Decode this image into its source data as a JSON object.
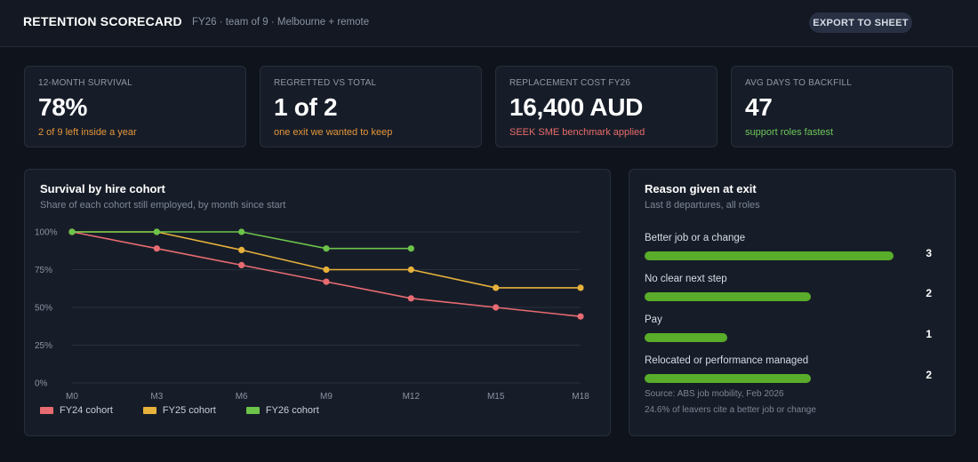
{
  "header": {
    "title": "RETENTION SCORECARD",
    "subtitle": "FY26 · team of 9 · Melbourne + remote",
    "export_label": "EXPORT TO SHEET"
  },
  "kpis": [
    {
      "label": "12-MONTH SURVIVAL",
      "value": "78%",
      "note": "2 of 9 left inside a year",
      "note_color": "#e3953a"
    },
    {
      "label": "REGRETTED VS TOTAL",
      "value": "1 of 2",
      "note": "one exit we wanted to keep",
      "note_color": "#e3953a"
    },
    {
      "label": "REPLACEMENT COST FY26",
      "value": "16,400 AUD",
      "note": "SEEK SME benchmark applied",
      "note_color": "#e96b6b"
    },
    {
      "label": "AVG DAYS TO BACKFILL",
      "value": "47",
      "note": "support roles fastest",
      "note_color": "#6cc55a"
    }
  ],
  "survival": {
    "title": "Survival by hire cohort",
    "subtitle": "Share of each cohort still employed, by month since start"
  },
  "chart_data": {
    "type": "line",
    "x": [
      "M0",
      "M3",
      "M6",
      "M9",
      "M12",
      "M15",
      "M18"
    ],
    "yticks": [
      "100%",
      "75%",
      "50%",
      "25%",
      "0%"
    ],
    "ylim": [
      0,
      100
    ],
    "grid": true,
    "legend_position": "bottom-left",
    "series": [
      {
        "name": "FY24 cohort",
        "color": "#e86b72",
        "values": [
          100,
          89,
          78,
          67,
          56,
          50,
          44
        ]
      },
      {
        "name": "FY25 cohort",
        "color": "#e7b23b",
        "values": [
          100,
          100,
          88,
          75,
          75,
          63,
          63
        ]
      },
      {
        "name": "FY26 cohort",
        "color": "#6cc44a",
        "values": [
          100,
          100,
          100,
          89,
          89,
          null,
          null
        ]
      }
    ]
  },
  "reasons": {
    "title": "Reason given at exit",
    "subtitle": "Last 8 departures, all roles",
    "max": 3,
    "items": [
      {
        "label": "Better job or a change",
        "count": 3,
        "count_label": "3"
      },
      {
        "label": "No clear next step",
        "count": 2,
        "count_label": "2"
      },
      {
        "label": "Pay",
        "count": 1,
        "count_label": "1"
      },
      {
        "label": "Relocated or performance managed",
        "count": 2,
        "count_label": "2"
      }
    ],
    "source": "Source: ABS job mobility, Feb 2026",
    "footnote": "24.6% of leavers cite a better job or change"
  }
}
